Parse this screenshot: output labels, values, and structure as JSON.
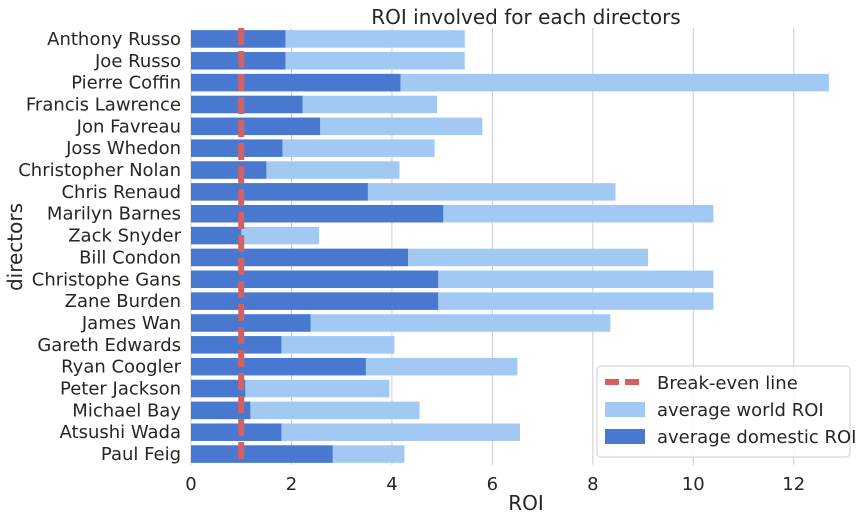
{
  "chart_data": {
    "type": "bar",
    "orientation": "horizontal",
    "title": "ROI involved for each directors",
    "xlabel": "ROI",
    "ylabel": "directors",
    "xlim": [
      0,
      13.1
    ],
    "xticks": [
      0,
      2,
      4,
      6,
      8,
      10,
      12
    ],
    "grid": "vertical",
    "legend_position": "bottom-right",
    "categories": [
      "Anthony Russo",
      "Joe Russo",
      "Pierre Coffin",
      "Francis Lawrence",
      "Jon Favreau",
      "Joss Whedon",
      "Christopher Nolan",
      "Chris Renaud",
      "Marilyn Barnes",
      "Zack Snyder",
      "Bill Condon",
      "Christophe Gans",
      "Zane Burden",
      "James Wan",
      "Gareth Edwards",
      "Ryan Coogler",
      "Peter Jackson",
      "Michael Bay",
      "Atsushi Wada",
      "Paul Feig"
    ],
    "series": [
      {
        "name": "average world ROI",
        "color": "#a1c9f4",
        "values": [
          5.45,
          5.45,
          12.7,
          4.9,
          5.8,
          4.85,
          4.15,
          8.45,
          10.4,
          2.55,
          9.1,
          10.4,
          10.4,
          8.35,
          4.05,
          6.5,
          3.95,
          4.55,
          6.55,
          4.25
        ]
      },
      {
        "name": "average domestic ROI",
        "color": "#4878cf",
        "values": [
          1.88,
          1.88,
          4.17,
          2.22,
          2.57,
          1.82,
          1.5,
          3.52,
          5.02,
          1.0,
          4.32,
          4.92,
          4.92,
          2.38,
          1.8,
          3.48,
          1.08,
          1.18,
          1.8,
          2.82
        ]
      }
    ],
    "reference_line": {
      "name": "Break-even line",
      "value": 1,
      "color": "#d65f5f"
    }
  }
}
